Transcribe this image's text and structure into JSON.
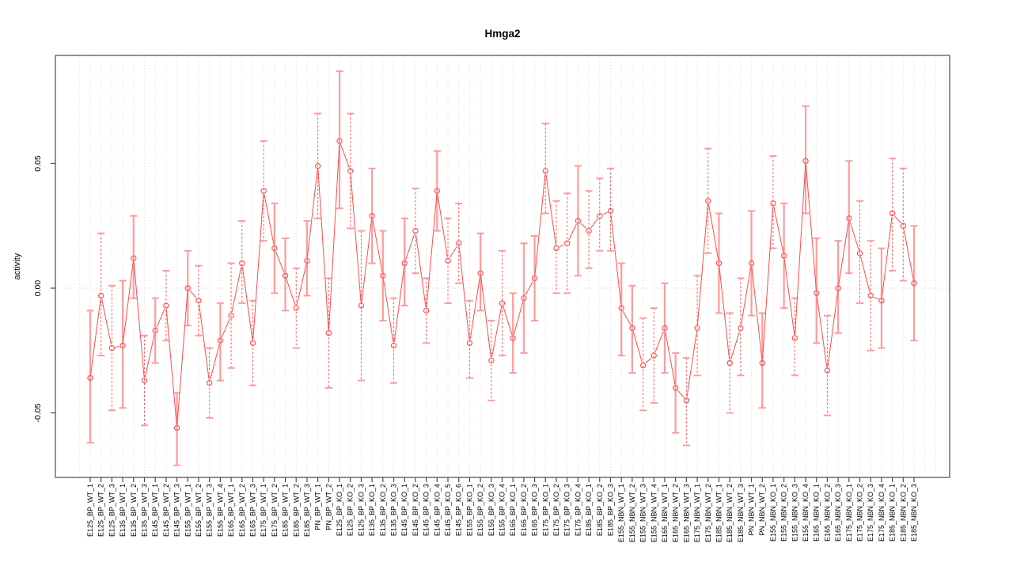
{
  "title": "Hmga2",
  "chart_data": {
    "type": "line",
    "subtype": "points-with-error-bars",
    "title": "Hmga2",
    "xlabel": "",
    "ylabel": "activity",
    "legend": "none",
    "grid": "dotted vertical gridline at every category; dotted horizontal line at y=0",
    "yticks": [
      -0.05,
      0.0,
      0.05
    ],
    "ytick_labels": [
      "-0.05",
      "0.00",
      "0.05"
    ],
    "ylim": [
      -0.076,
      0.093
    ],
    "marker": "open-circle",
    "point_fields": [
      "label",
      "value",
      "lo",
      "hi",
      "bar_style"
    ],
    "points": [
      [
        "E125_BP_WT_1",
        -0.036,
        -0.062,
        -0.009,
        "solid"
      ],
      [
        "E125_BP_WT_2",
        -0.003,
        -0.027,
        0.022,
        "dashed"
      ],
      [
        "E125_BP_WT_3",
        -0.024,
        -0.049,
        0.001,
        "dashed"
      ],
      [
        "E135_BP_WT_1",
        -0.023,
        -0.048,
        0.003,
        "solid"
      ],
      [
        "E135_BP_WT_2",
        0.012,
        -0.004,
        0.029,
        "solid"
      ],
      [
        "E135_BP_WT_3",
        -0.037,
        -0.055,
        -0.019,
        "dashed"
      ],
      [
        "E145_BP_WT_1",
        -0.017,
        -0.03,
        -0.004,
        "solid"
      ],
      [
        "E145_BP_WT_2",
        -0.007,
        -0.021,
        0.007,
        "dashed"
      ],
      [
        "E145_BP_WT_3",
        -0.056,
        -0.071,
        -0.042,
        "solid"
      ],
      [
        "E155_BP_WT_1",
        0.0,
        -0.015,
        0.015,
        "solid"
      ],
      [
        "E155_BP_WT_2",
        -0.005,
        -0.019,
        0.009,
        "dashed"
      ],
      [
        "E155_BP_WT_3",
        -0.038,
        -0.052,
        -0.024,
        "dashed"
      ],
      [
        "E155_BP_WT_4",
        -0.021,
        -0.037,
        -0.006,
        "solid"
      ],
      [
        "E165_BP_WT_1",
        -0.011,
        -0.032,
        0.01,
        "dashed"
      ],
      [
        "E165_BP_WT_2",
        0.01,
        -0.006,
        0.027,
        "dashed"
      ],
      [
        "E165_BP_WT_3",
        -0.022,
        -0.039,
        -0.005,
        "dashed"
      ],
      [
        "E175_BP_WT_1",
        0.039,
        0.019,
        0.059,
        "dashed"
      ],
      [
        "E175_BP_WT_2",
        0.016,
        -0.002,
        0.034,
        "solid"
      ],
      [
        "E185_BP_WT_1",
        0.005,
        -0.009,
        0.02,
        "solid"
      ],
      [
        "E185_BP_WT_2",
        -0.008,
        -0.024,
        0.008,
        "dashed"
      ],
      [
        "E185_BP_WT_3",
        0.011,
        -0.003,
        0.027,
        "solid"
      ],
      [
        "PN_BP_WT_1",
        0.049,
        0.028,
        0.07,
        "dashed"
      ],
      [
        "PN_BP_WT_2",
        -0.018,
        -0.04,
        0.004,
        "dashed"
      ],
      [
        "E125_BP_KO_1",
        0.059,
        0.032,
        0.087,
        "solid"
      ],
      [
        "E125_BP_KO_2",
        0.047,
        0.024,
        0.07,
        "dashed"
      ],
      [
        "E125_BP_KO_3",
        -0.007,
        -0.037,
        0.023,
        "dashed"
      ],
      [
        "E135_BP_KO_1",
        0.029,
        0.01,
        0.048,
        "solid"
      ],
      [
        "E135_BP_KO_2",
        0.005,
        -0.013,
        0.023,
        "solid"
      ],
      [
        "E135_BP_KO_3",
        -0.023,
        -0.038,
        -0.004,
        "dashed"
      ],
      [
        "E145_BP_KO_1",
        0.01,
        -0.007,
        0.028,
        "solid"
      ],
      [
        "E145_BP_KO_2",
        0.023,
        0.006,
        0.04,
        "dashed"
      ],
      [
        "E145_BP_KO_3",
        -0.009,
        -0.022,
        0.004,
        "dashed"
      ],
      [
        "E145_BP_KO_4",
        0.039,
        0.023,
        0.055,
        "solid"
      ],
      [
        "E145_BP_KO_5",
        0.011,
        -0.006,
        0.028,
        "dashed"
      ],
      [
        "E145_BP_KO_6",
        0.018,
        0.002,
        0.034,
        "dashed"
      ],
      [
        "E155_BP_KO_1",
        -0.022,
        -0.036,
        -0.005,
        "dashed"
      ],
      [
        "E155_BP_KO_2",
        0.006,
        -0.009,
        0.022,
        "solid"
      ],
      [
        "E155_BP_KO_3",
        -0.029,
        -0.045,
        -0.013,
        "dashed"
      ],
      [
        "E155_BP_KO_4",
        -0.006,
        -0.027,
        0.015,
        "dashed"
      ],
      [
        "E165_BP_KO_1",
        -0.02,
        -0.034,
        -0.002,
        "solid"
      ],
      [
        "E165_BP_KO_2",
        -0.004,
        -0.026,
        0.018,
        "solid"
      ],
      [
        "E165_BP_KO_3",
        0.004,
        -0.013,
        0.021,
        "solid"
      ],
      [
        "E175_BP_KO_1",
        0.047,
        0.03,
        0.066,
        "dashed"
      ],
      [
        "E175_BP_KO_2",
        0.016,
        -0.002,
        0.035,
        "dashed"
      ],
      [
        "E175_BP_KO_3",
        0.018,
        -0.002,
        0.038,
        "dashed"
      ],
      [
        "E175_BP_KO_4",
        0.027,
        0.005,
        0.049,
        "solid"
      ],
      [
        "E185_BP_KO_1",
        0.023,
        0.008,
        0.039,
        "dashed"
      ],
      [
        "E185_BP_KO_2",
        0.029,
        0.015,
        0.044,
        "dashed"
      ],
      [
        "E185_BP_KO_3",
        0.031,
        0.015,
        0.048,
        "dashed"
      ],
      [
        "E155_NBN_WT_1",
        -0.008,
        -0.027,
        0.01,
        "solid"
      ],
      [
        "E155_NBN_WT_2",
        -0.016,
        -0.034,
        0.001,
        "solid"
      ],
      [
        "E155_NBN_WT_3",
        -0.031,
        -0.049,
        -0.012,
        "dashed"
      ],
      [
        "E155_NBN_WT_4",
        -0.027,
        -0.046,
        -0.008,
        "dashed"
      ],
      [
        "E165_NBN_WT_1",
        -0.016,
        -0.034,
        0.002,
        "solid"
      ],
      [
        "E165_NBN_WT_2",
        -0.04,
        -0.058,
        -0.026,
        "solid"
      ],
      [
        "E165_NBN_WT_3",
        -0.045,
        -0.063,
        -0.028,
        "dashed"
      ],
      [
        "E175_NBN_WT_1",
        -0.016,
        -0.035,
        0.005,
        "dashed"
      ],
      [
        "E175_NBN_WT_2",
        0.035,
        0.014,
        0.056,
        "dashed"
      ],
      [
        "E185_NBN_WT_1",
        0.01,
        -0.01,
        0.03,
        "solid"
      ],
      [
        "E185_NBN_WT_2",
        -0.03,
        -0.05,
        -0.01,
        "dashed"
      ],
      [
        "E185_NBN_WT_3",
        -0.016,
        -0.035,
        0.004,
        "dashed"
      ],
      [
        "PN_NBN_WT_1",
        0.01,
        -0.011,
        0.031,
        "solid"
      ],
      [
        "PN_NBN_WT_2",
        -0.03,
        -0.048,
        -0.01,
        "solid"
      ],
      [
        "E155_NBN_KO_1",
        0.034,
        0.016,
        0.053,
        "dashed"
      ],
      [
        "E155_NBN_KO_2",
        0.013,
        -0.008,
        0.034,
        "solid"
      ],
      [
        "E155_NBN_KO_3",
        -0.02,
        -0.035,
        -0.004,
        "dashed"
      ],
      [
        "E155_NBN_KO_4",
        0.051,
        0.03,
        0.073,
        "solid"
      ],
      [
        "E165_NBN_KO_1",
        -0.002,
        -0.022,
        0.02,
        "solid"
      ],
      [
        "E165_NBN_KO_2",
        -0.033,
        -0.051,
        -0.011,
        "dashed"
      ],
      [
        "E165_NBN_KO_3",
        0.0,
        -0.018,
        0.019,
        "solid"
      ],
      [
        "E175_NBN_KO_1",
        0.028,
        0.006,
        0.051,
        "solid"
      ],
      [
        "E175_NBN_KO_2",
        0.014,
        -0.006,
        0.035,
        "dashed"
      ],
      [
        "E175_NBN_KO_3",
        -0.003,
        -0.025,
        0.019,
        "dashed"
      ],
      [
        "E175_NBN_KO_4",
        -0.005,
        -0.024,
        0.016,
        "solid"
      ],
      [
        "E185_NBN_KO_1",
        0.03,
        0.007,
        0.052,
        "dashed"
      ],
      [
        "E185_NBN_KO_2",
        0.025,
        0.003,
        0.048,
        "dashed"
      ],
      [
        "E185_NBN_KO_3",
        0.002,
        -0.021,
        0.025,
        "solid"
      ]
    ]
  },
  "colors": {
    "series_line": "#ff4a4a",
    "marker_stroke": "#ff4a4a",
    "errorbar_solid": "#ff9b9b",
    "errorbar_dashed": "#ff5555",
    "errorbar_cap": "#ff9b9b",
    "gridline": "#d9d9d9",
    "zero_line": "#cccccc",
    "box_and_ticks": "#4a4a4a",
    "text": "#000000",
    "background": "#ffffff"
  }
}
